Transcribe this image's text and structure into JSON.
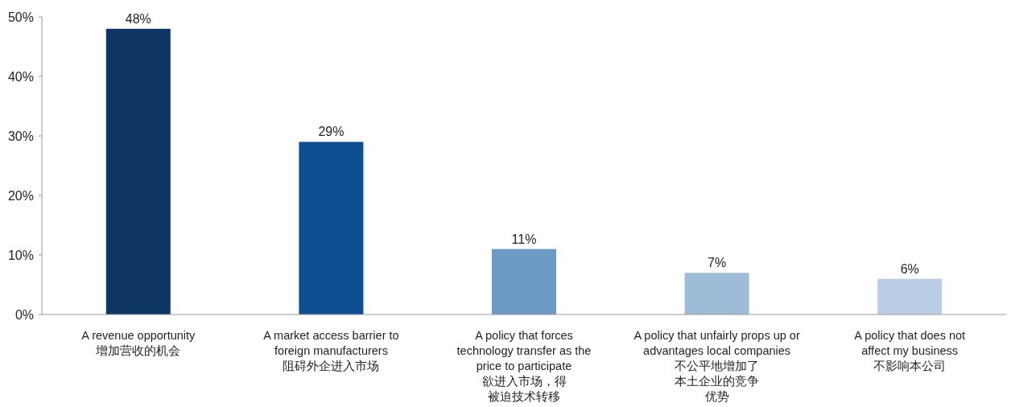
{
  "chart_data": {
    "type": "bar",
    "categories": [
      "A revenue opportunity\n增加营收的机会",
      "A market access barrier to\nforeign manufacturers\n阻碍外企进入市场",
      "A policy that forces\ntechnology transfer as the\nprice to participate\n欲进入市场，得被迫技术转移",
      "A policy that unfairly props up or\nadvantages local companies\n不公平地增加了本土企业的竞争优势",
      "A policy that does not\naffect my business\n不影响本公司"
    ],
    "values": [
      48,
      29,
      11,
      7,
      6
    ],
    "value_labels": [
      "48%",
      "29%",
      "11%",
      "7%",
      "6%"
    ],
    "colors": [
      "#0e3564",
      "#0c5091",
      "#6b9ac4",
      "#9ebbd8",
      "#b9cee4"
    ],
    "ylim": [
      0,
      50
    ],
    "yticks": [
      {
        "value": 0,
        "label": "0%"
      },
      {
        "value": 10,
        "label": "10%"
      },
      {
        "value": 20,
        "label": "20%"
      },
      {
        "value": 30,
        "label": "30%"
      },
      {
        "value": 40,
        "label": "40%"
      },
      {
        "value": 50,
        "label": "50%"
      }
    ],
    "grid": false
  }
}
